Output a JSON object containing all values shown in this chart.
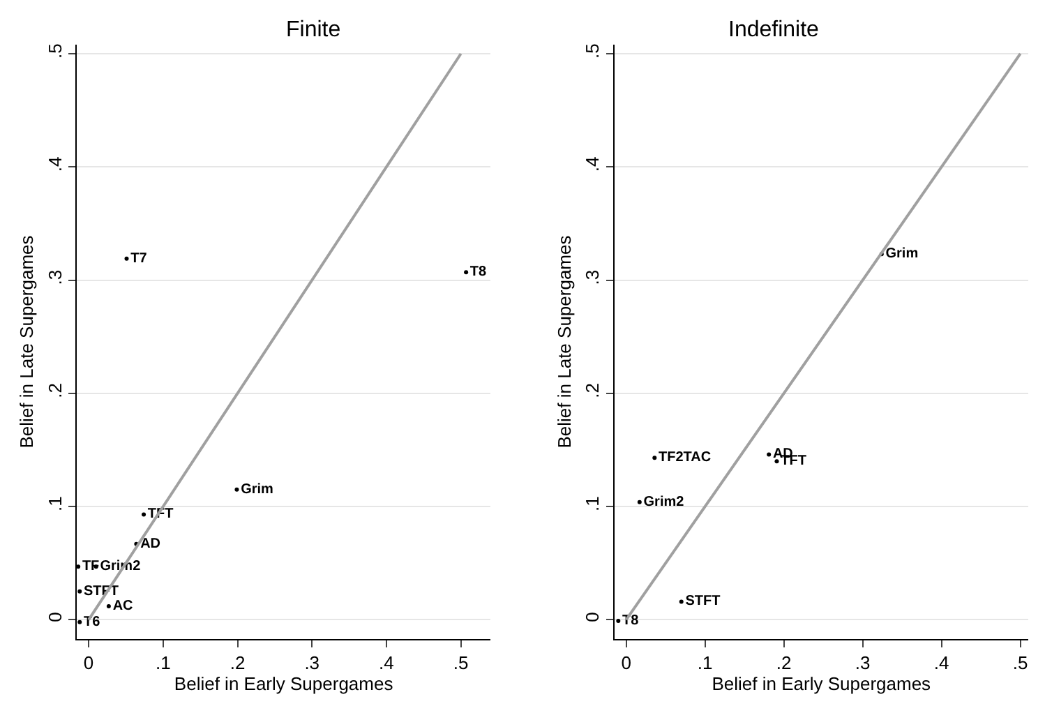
{
  "chart_data": [
    {
      "type": "scatter",
      "title": "Finite",
      "xlabel": "Belief in Early Supergames",
      "ylabel": "Belief in Late Supergames",
      "grid": "y",
      "xlim": [
        -0.016,
        0.54
      ],
      "ylim": [
        -0.017,
        0.508
      ],
      "xticks": [
        {
          "value": 0,
          "label": "0"
        },
        {
          "value": 0.1,
          "label": ".1"
        },
        {
          "value": 0.2,
          "label": ".2"
        },
        {
          "value": 0.3,
          "label": ".3"
        },
        {
          "value": 0.4,
          "label": ".4"
        },
        {
          "value": 0.5,
          "label": ".5"
        }
      ],
      "yticks": [
        {
          "value": 0,
          "label": "0"
        },
        {
          "value": 0.1,
          "label": ".1"
        },
        {
          "value": 0.2,
          "label": ".2"
        },
        {
          "value": 0.3,
          "label": ".3"
        },
        {
          "value": 0.4,
          "label": ".4"
        },
        {
          "value": 0.5,
          "label": ".5"
        }
      ],
      "series": [
        {
          "marker": "circle",
          "color": "#000000",
          "x": [
            0.051,
            0.507,
            0.199,
            0.074,
            0.064,
            -0.014,
            0.01,
            -0.012,
            0.027,
            -0.012
          ],
          "values": [
            0.319,
            0.307,
            0.115,
            0.093,
            0.067,
            0.047,
            0.047,
            0.025,
            0.012,
            -0.002
          ],
          "value_labels": [
            "T7",
            "T8",
            "Grim",
            "TFT",
            "AD",
            "TF",
            "Grim2",
            "STFT",
            "AC",
            "T6"
          ]
        },
        {
          "type": "line",
          "color": "#a0a0a0",
          "x": [
            0,
            0.5
          ],
          "values": [
            0,
            0.5
          ]
        }
      ]
    },
    {
      "type": "scatter",
      "title": "Indefinite",
      "xlabel": "Belief in Early Supergames",
      "ylabel": "Belief in Late Supergames",
      "grid": "y",
      "xlim": [
        -0.015,
        0.51
      ],
      "ylim": [
        -0.017,
        0.508
      ],
      "xticks": [
        {
          "value": 0,
          "label": "0"
        },
        {
          "value": 0.1,
          "label": ".1"
        },
        {
          "value": 0.2,
          "label": ".2"
        },
        {
          "value": 0.3,
          "label": ".3"
        },
        {
          "value": 0.4,
          "label": ".4"
        },
        {
          "value": 0.5,
          "label": ".5"
        }
      ],
      "yticks": [
        {
          "value": 0,
          "label": "0"
        },
        {
          "value": 0.1,
          "label": ".1"
        },
        {
          "value": 0.2,
          "label": ".2"
        },
        {
          "value": 0.3,
          "label": ".3"
        },
        {
          "value": 0.4,
          "label": ".4"
        },
        {
          "value": 0.5,
          "label": ".5"
        }
      ],
      "series": [
        {
          "marker": "circle",
          "color": "#000000",
          "x": [
            0.324,
            0.036,
            0.181,
            0.191,
            0.017,
            0.07,
            -0.01
          ],
          "values": [
            0.323,
            0.143,
            0.146,
            0.14,
            0.104,
            0.016,
            -0.001
          ],
          "value_labels": [
            "Grim",
            "TF2TAC",
            "AD",
            "TFT",
            "Grim2",
            "STFT",
            "T8"
          ]
        },
        {
          "type": "line",
          "color": "#a0a0a0",
          "x": [
            0,
            0.5
          ],
          "values": [
            0,
            0.5
          ]
        }
      ]
    }
  ]
}
